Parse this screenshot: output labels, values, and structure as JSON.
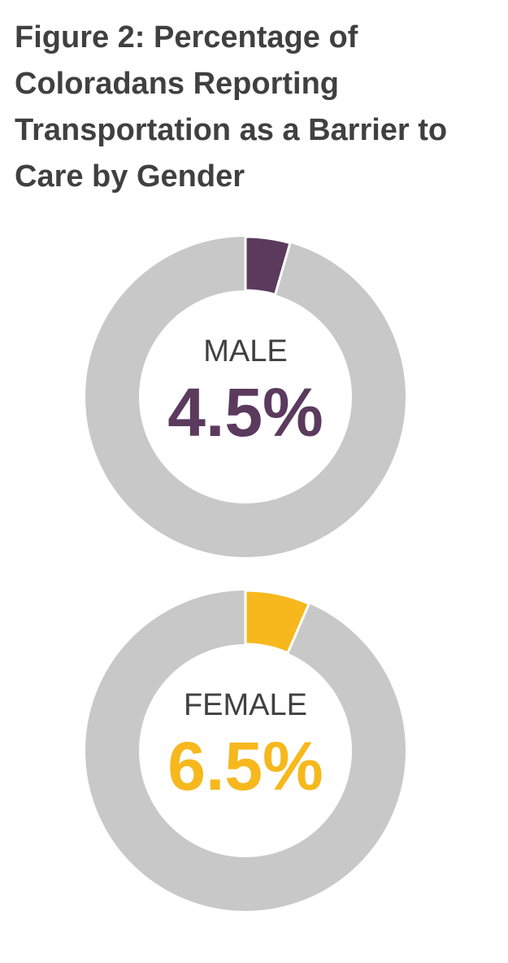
{
  "title": "Figure 2: Percentage of Coloradans Reporting Transportation as a Barrier to Care by Gender",
  "chart_data": [
    {
      "type": "donut",
      "categories": [
        "MALE"
      ],
      "values": [
        4.5
      ],
      "value_labels": [
        "4.5%"
      ],
      "color": "#5b3a5e",
      "rest_color": "#c8c8c9"
    },
    {
      "type": "donut",
      "categories": [
        "FEMALE"
      ],
      "values": [
        6.5
      ],
      "value_labels": [
        "6.5%"
      ],
      "color": "#f6b81c",
      "rest_color": "#c8c8c9"
    }
  ]
}
